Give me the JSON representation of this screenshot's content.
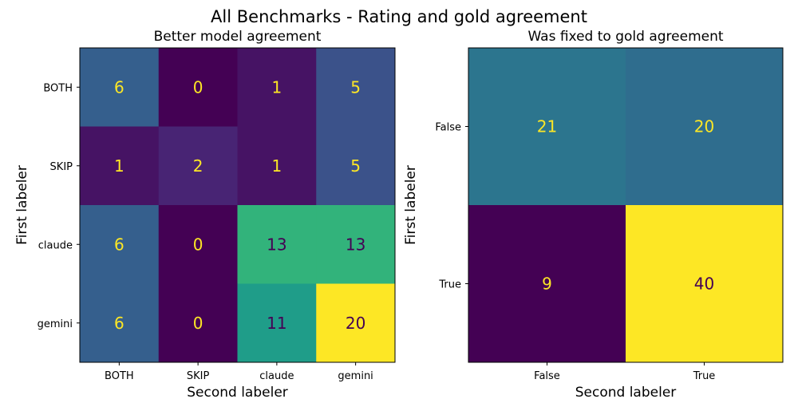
{
  "figure": {
    "title": "All Benchmarks - Rating and gold agreement"
  },
  "chart_data": [
    {
      "type": "heatmap",
      "title": "Better model agreement",
      "xlabel": "Second labeler",
      "ylabel": "First labeler",
      "x_categories": [
        "BOTH",
        "SKIP",
        "claude",
        "gemini"
      ],
      "y_categories": [
        "BOTH",
        "SKIP",
        "claude",
        "gemini"
      ],
      "values": [
        [
          6,
          0,
          1,
          5
        ],
        [
          1,
          2,
          1,
          5
        ],
        [
          6,
          0,
          13,
          13
        ],
        [
          6,
          0,
          11,
          20
        ]
      ],
      "vmin": 0,
      "vmax": 20,
      "colormap": "viridis",
      "grid": false
    },
    {
      "type": "heatmap",
      "title": "Was fixed to gold agreement",
      "xlabel": "Second labeler",
      "ylabel": "First labeler",
      "x_categories": [
        "False",
        "True"
      ],
      "y_categories": [
        "False",
        "True"
      ],
      "values": [
        [
          21,
          20
        ],
        [
          9,
          40
        ]
      ],
      "vmin": 9,
      "vmax": 40,
      "colormap": "viridis",
      "grid": false
    }
  ],
  "colors": {
    "text_light": "#fde725",
    "text_dark": "#440154"
  }
}
